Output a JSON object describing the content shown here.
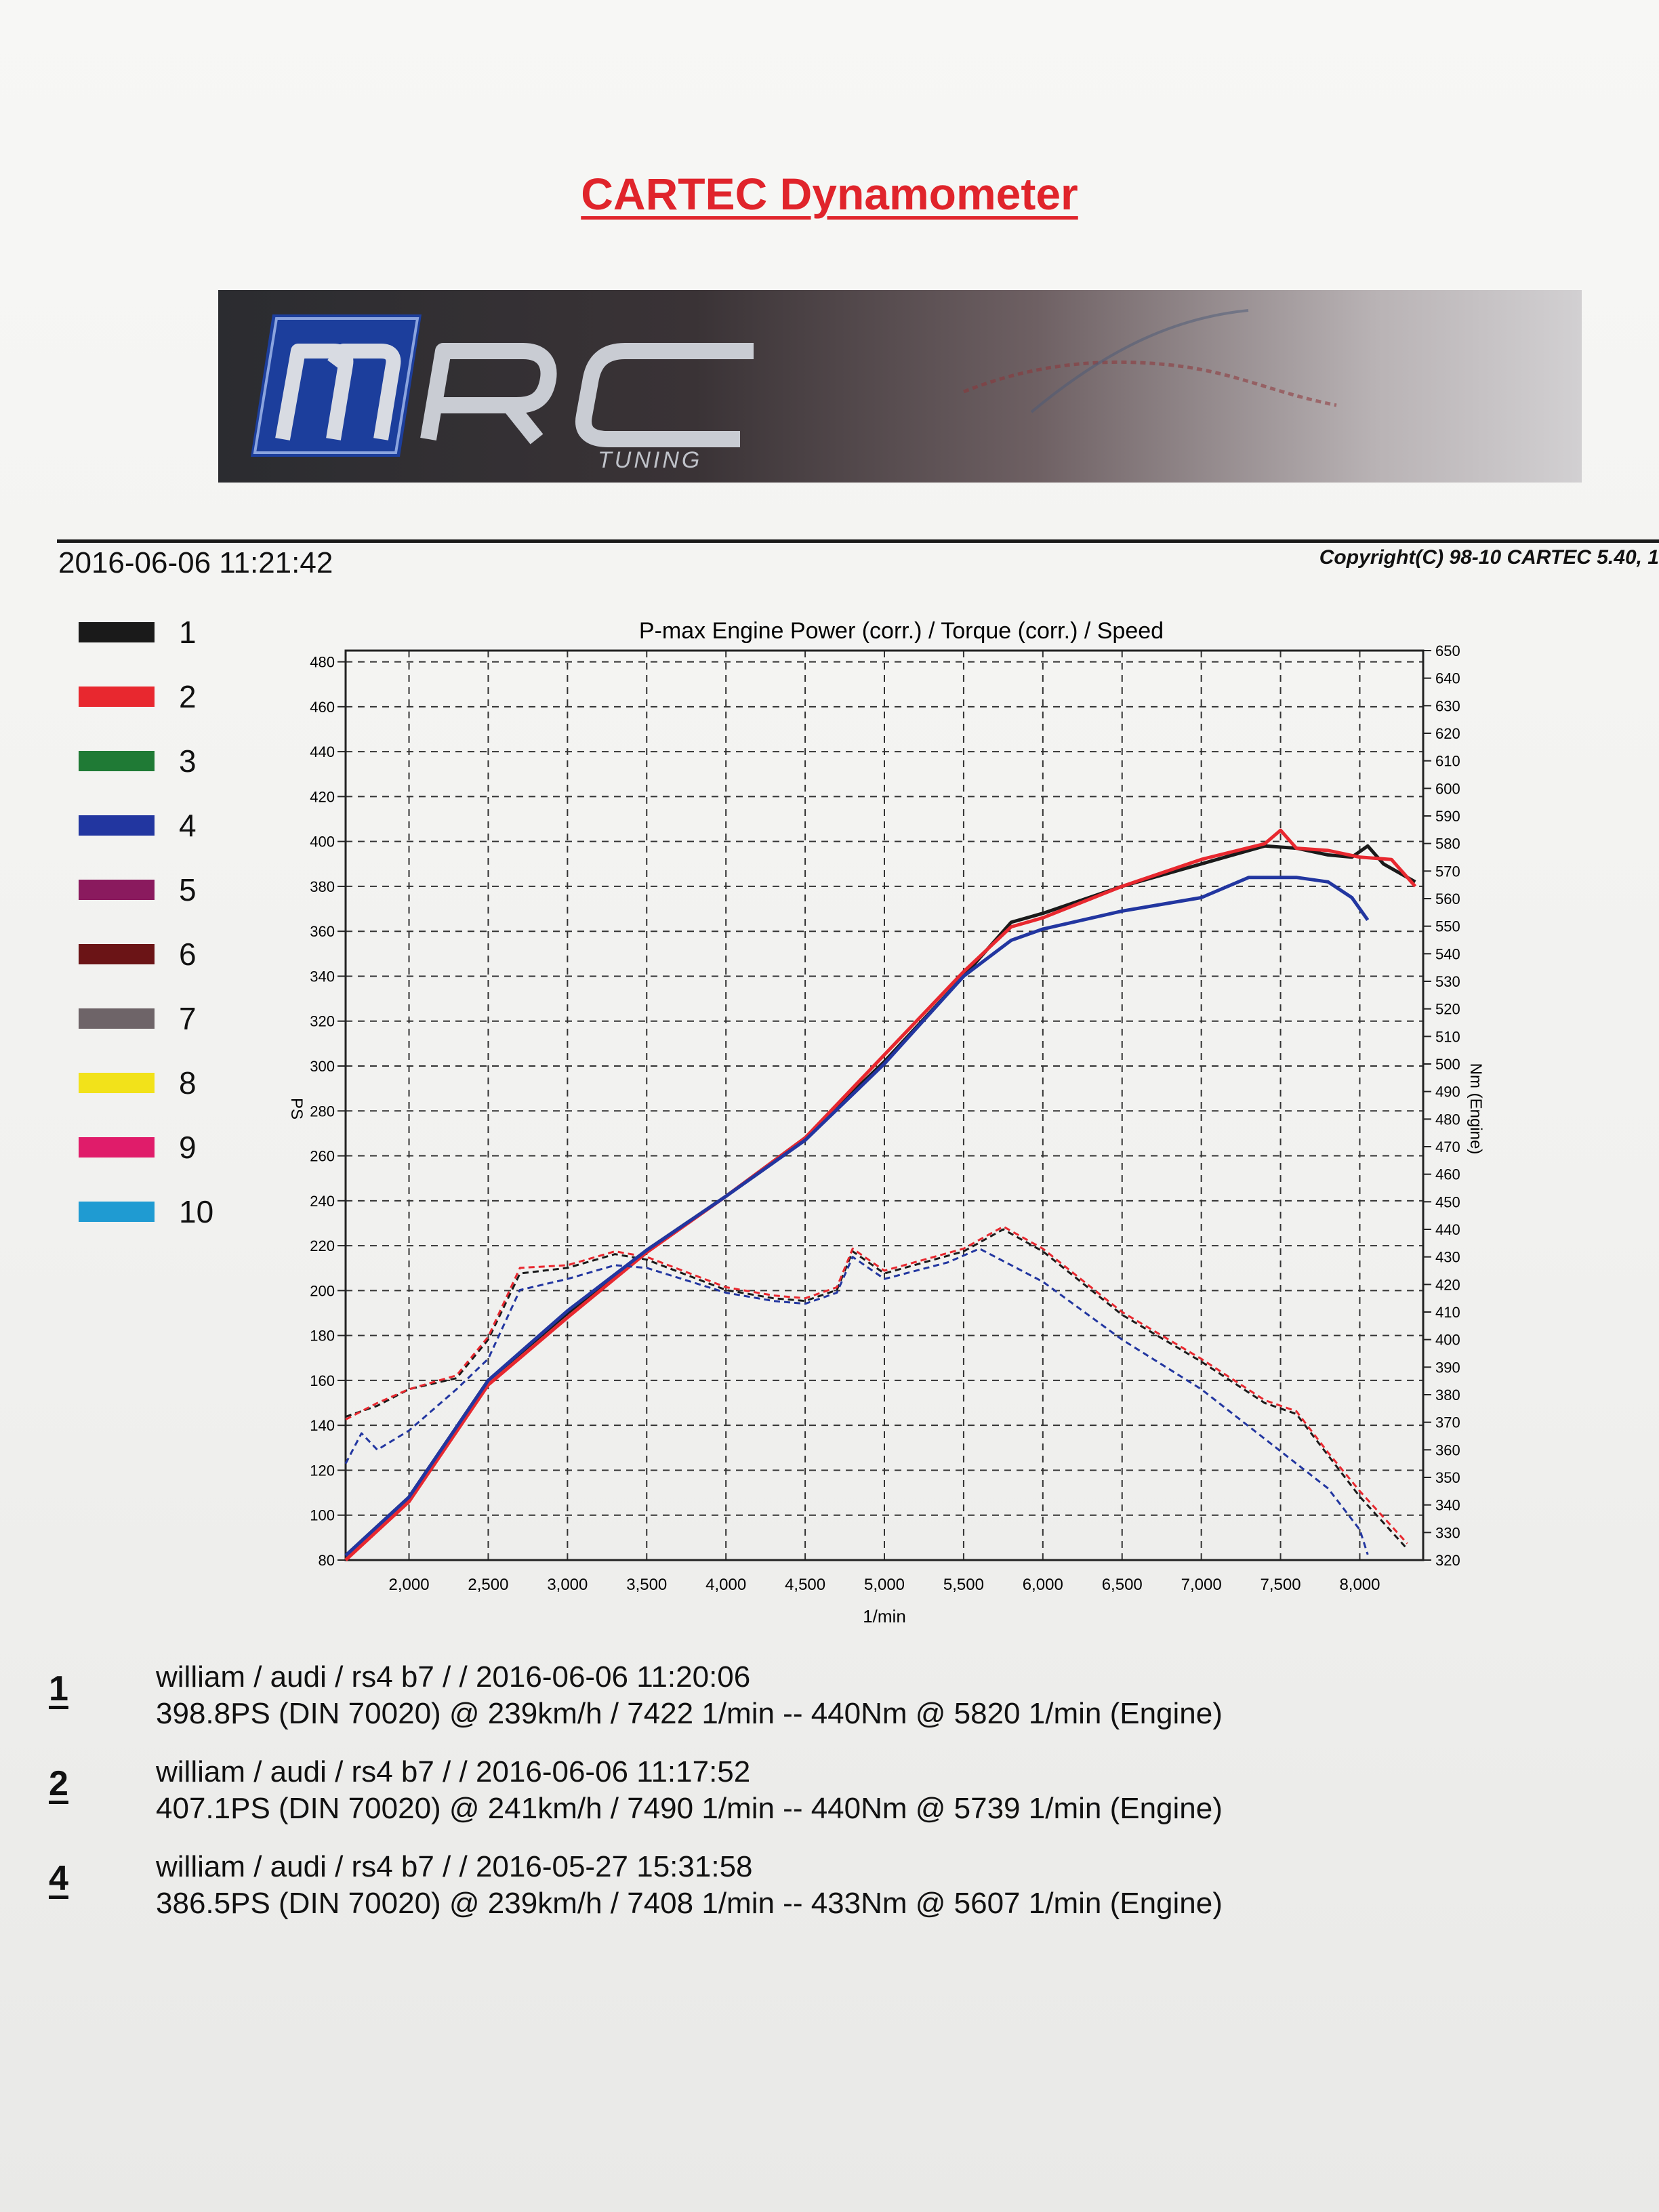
{
  "document": {
    "title": "CARTEC Dynamometer",
    "timestamp": "2016-06-06 11:21:42",
    "copyright": "Copyright(C) 98-10 CARTEC 5.40, 1"
  },
  "banner": {
    "logo_text": "MRC",
    "logo_subtext": "TUNING"
  },
  "legend": [
    {
      "label": "1",
      "color": "#1a1a1a"
    },
    {
      "label": "2",
      "color": "#e8282f"
    },
    {
      "label": "3",
      "color": "#1f7a35"
    },
    {
      "label": "4",
      "color": "#2236a0"
    },
    {
      "label": "5",
      "color": "#8a1a5e"
    },
    {
      "label": "6",
      "color": "#6b1416"
    },
    {
      "label": "7",
      "color": "#6e6468"
    },
    {
      "label": "8",
      "color": "#f2e21a"
    },
    {
      "label": "9",
      "color": "#e01c6a"
    },
    {
      "label": "10",
      "color": "#1f9bd2"
    }
  ],
  "chart_data": {
    "type": "line",
    "title": "P-max Engine Power (corr.) / Torque (corr.) / Speed",
    "xlabel": "1/min",
    "ylabel_left": "PS",
    "ylabel_right": "Nm (Engine)",
    "xlim": [
      1600,
      8400
    ],
    "ylim_left": [
      80,
      485
    ],
    "ylim_right": [
      320,
      650
    ],
    "x_ticks": [
      2000,
      2500,
      3000,
      3500,
      4000,
      4500,
      5000,
      5500,
      6000,
      6500,
      7000,
      7500,
      8000
    ],
    "x_tick_labels": [
      "2,000",
      "2,500",
      "3,000",
      "3,500",
      "4,000",
      "4,500",
      "5,000",
      "5,500",
      "6,000",
      "6,500",
      "7,000",
      "7,500",
      "8,000"
    ],
    "y_ticks_left": [
      80,
      100,
      120,
      140,
      160,
      180,
      200,
      220,
      240,
      260,
      280,
      300,
      320,
      340,
      360,
      380,
      400,
      420,
      440,
      460,
      480
    ],
    "y_ticks_right": [
      320,
      330,
      340,
      350,
      360,
      370,
      380,
      390,
      400,
      410,
      420,
      430,
      440,
      450,
      460,
      470,
      480,
      490,
      500,
      510,
      520,
      530,
      540,
      550,
      560,
      570,
      580,
      590,
      600,
      610,
      620,
      630,
      640,
      650
    ],
    "grid": true,
    "series": [
      {
        "name": "1",
        "color": "#1a1a1a",
        "power": {
          "x": [
            1600,
            2000,
            2500,
            3000,
            3500,
            4000,
            4500,
            5000,
            5500,
            5800,
            6000,
            6500,
            7000,
            7400,
            7600,
            7800,
            7950,
            8050,
            8150,
            8350
          ],
          "y": [
            82,
            108,
            160,
            190,
            218,
            242,
            268,
            302,
            340,
            364,
            368,
            380,
            390,
            398,
            397,
            394,
            393,
            398,
            390,
            382
          ]
        },
        "torque": {
          "x": [
            1600,
            1800,
            2000,
            2300,
            2500,
            2700,
            3000,
            3300,
            3500,
            4000,
            4300,
            4500,
            4700,
            4800,
            5000,
            5500,
            5750,
            6000,
            6500,
            7000,
            7400,
            7600,
            7800,
            8000,
            8300
          ],
          "y": [
            372,
            376,
            382,
            386,
            400,
            424,
            426,
            431,
            429,
            418,
            415,
            414,
            418,
            432,
            424,
            432,
            440,
            432,
            409,
            392,
            377,
            373,
            358,
            343,
            324
          ]
        }
      },
      {
        "name": "2",
        "color": "#e8282f",
        "power": {
          "x": [
            1600,
            2000,
            2500,
            3000,
            3500,
            4000,
            4500,
            5000,
            5500,
            5800,
            6000,
            6500,
            7000,
            7400,
            7500,
            7600,
            7800,
            8000,
            8200,
            8350
          ],
          "y": [
            80,
            106,
            158,
            188,
            217,
            242,
            268,
            305,
            342,
            362,
            366,
            380,
            392,
            399,
            405,
            397,
            396,
            393,
            392,
            380
          ]
        },
        "torque": {
          "x": [
            1600,
            1800,
            2000,
            2300,
            2500,
            2700,
            3000,
            3300,
            3500,
            4000,
            4300,
            4500,
            4700,
            4800,
            5000,
            5500,
            5750,
            6000,
            6500,
            7000,
            7400,
            7600,
            7800,
            8000,
            8300
          ],
          "y": [
            371,
            377,
            382,
            387,
            401,
            426,
            427,
            432,
            430,
            419,
            416,
            415,
            419,
            433,
            425,
            433,
            441,
            433,
            410,
            393,
            378,
            374,
            359,
            345,
            326
          ]
        }
      },
      {
        "name": "4",
        "color": "#2236a0",
        "power": {
          "x": [
            1600,
            2000,
            2500,
            3000,
            3500,
            4000,
            4500,
            5000,
            5500,
            5800,
            6000,
            6500,
            7000,
            7300,
            7600,
            7800,
            7950,
            8050
          ],
          "y": [
            82,
            108,
            160,
            191,
            218,
            242,
            267,
            301,
            340,
            356,
            361,
            369,
            375,
            384,
            384,
            382,
            375,
            365
          ]
        },
        "torque": {
          "x": [
            1600,
            1700,
            1800,
            2000,
            2300,
            2500,
            2700,
            3000,
            3300,
            3500,
            4000,
            4300,
            4500,
            4700,
            4800,
            5000,
            5400,
            5600,
            6000,
            6500,
            7000,
            7400,
            7800,
            8000,
            8050
          ],
          "y": [
            355,
            366,
            360,
            367,
            382,
            393,
            418,
            422,
            427,
            426,
            417,
            414,
            413,
            417,
            430,
            422,
            428,
            433,
            421,
            400,
            382,
            364,
            346,
            331,
            322
          ]
        }
      }
    ]
  },
  "results": [
    {
      "num": "1",
      "line1": "william / audi / rs4 b7 /  / 2016-06-06 11:20:06",
      "line2": "398.8PS (DIN 70020) @ 239km/h / 7422 1/min -- 440Nm @ 5820 1/min (Engine)"
    },
    {
      "num": "2",
      "line1": "william / audi / rs4 b7 /  / 2016-06-06 11:17:52",
      "line2": "407.1PS (DIN 70020) @ 241km/h / 7490 1/min -- 440Nm @ 5739 1/min (Engine)"
    },
    {
      "num": "4",
      "line1": "william / audi / rs4 b7 /  / 2016-05-27 15:31:58",
      "line2": "386.5PS (DIN 70020) @ 239km/h / 7408 1/min -- 433Nm @ 5607 1/min (Engine)"
    }
  ]
}
